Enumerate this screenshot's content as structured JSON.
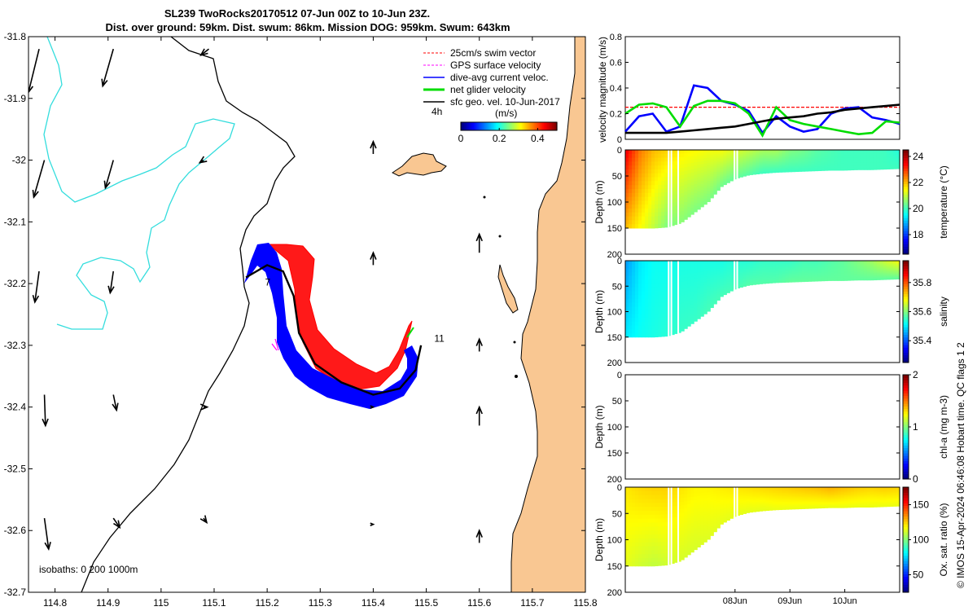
{
  "title": {
    "line1": "SL239 TwoRocks20170512 07-Jun 00Z to 10-Jun 23Z.",
    "line2": "Dist. over ground: 59km. Dist. swum: 86km. Mission DOG: 959km. Swum: 643km"
  },
  "colors": {
    "land": "#f9c792",
    "swim": "#ff0000",
    "gps": "#ff00ff",
    "current": "#0000ff",
    "net": "#00dd00",
    "geo": "#000000",
    "isobath": "#33dddd"
  },
  "chart_data": [
    {
      "type": "map",
      "name": "track-map",
      "xlabel": "",
      "ylabel": "",
      "xlim": [
        114.75,
        115.8
      ],
      "ylim": [
        -32.7,
        -31.8
      ],
      "xticks": [
        114.8,
        114.9,
        115,
        115.1,
        115.2,
        115.3,
        115.4,
        115.5,
        115.6,
        115.7,
        115.8
      ],
      "xtick_labels": [
        "114.8",
        "114.9",
        "115",
        "115.1",
        "115.2",
        "115.3",
        "115.4",
        "115.5",
        "115.6",
        "115.7",
        "115.8"
      ],
      "yticks": [
        -31.8,
        -31.9,
        -32,
        -32.1,
        -32.2,
        -32.3,
        -32.4,
        -32.5,
        -32.6,
        -32.7
      ],
      "ytick_labels": [
        "-31.8",
        "-31.9",
        "-32",
        "-32.1",
        "-32.2",
        "-32.3",
        "-32.4",
        "-32.5",
        "-32.6",
        "-32.7"
      ],
      "track": [
        [
          115.16,
          -32.19
        ],
        [
          115.2,
          -32.17
        ],
        [
          115.23,
          -32.18
        ],
        [
          115.25,
          -32.22
        ],
        [
          115.26,
          -32.28
        ],
        [
          115.29,
          -32.33
        ],
        [
          115.34,
          -32.36
        ],
        [
          115.4,
          -32.38
        ],
        [
          115.45,
          -32.37
        ],
        [
          115.48,
          -32.34
        ],
        [
          115.49,
          -32.3
        ]
      ],
      "day_labels": [
        {
          "text": "7",
          "lon": 115.196,
          "lat": -32.203
        },
        {
          "text": "11",
          "lon": 115.515,
          "lat": -32.294
        }
      ],
      "geo_vectors": [
        [
          114.77,
          -31.82,
          -0.02,
          -0.07
        ],
        [
          114.91,
          -31.82,
          -0.02,
          -0.06
        ],
        [
          115.09,
          -31.82,
          -0.015,
          -0.01
        ],
        [
          114.78,
          -32.0,
          -0.02,
          -0.06
        ],
        [
          114.91,
          -32.0,
          -0.015,
          -0.045
        ],
        [
          115.08,
          -32.0,
          -0.007,
          -0.004
        ],
        [
          114.77,
          -32.18,
          -0.008,
          -0.05
        ],
        [
          114.91,
          -32.18,
          -0.006,
          -0.035
        ],
        [
          114.78,
          -32.38,
          0.002,
          -0.05
        ],
        [
          114.91,
          -32.38,
          0.006,
          -0.025
        ],
        [
          115.08,
          -32.4,
          0.007,
          0.0
        ],
        [
          114.78,
          -32.58,
          0.008,
          -0.05
        ],
        [
          114.91,
          -32.58,
          0.012,
          -0.015
        ],
        [
          115.08,
          -32.58,
          0.006,
          -0.007
        ],
        [
          115.4,
          -31.99,
          0.0,
          0.02
        ],
        [
          115.4,
          -32.17,
          0.0,
          0.02
        ],
        [
          115.4,
          -32.4,
          0.0,
          0.0
        ],
        [
          115.4,
          -32.59,
          0.0,
          0.0
        ],
        [
          115.6,
          -32.15,
          0.0,
          0.03
        ],
        [
          115.6,
          -32.31,
          0.0,
          0.02
        ],
        [
          115.6,
          -32.43,
          0.0,
          0.03
        ],
        [
          115.6,
          -32.62,
          0.0,
          0.02
        ]
      ],
      "legend": [
        {
          "label": "25cm/s swim vector",
          "color": "#ff0000"
        },
        {
          "label": "GPS surface velocity",
          "color": "#ff00ff"
        },
        {
          "label": "dive-avg current veloc.",
          "color": "#0000ff"
        },
        {
          "label": "net glider velocity",
          "color": "#00dd00"
        },
        {
          "label": "sfc geo. vel. 10-Jun-2017",
          "color": "#000000"
        }
      ],
      "scale_label": "4h",
      "colorbar": {
        "label": "(m/s)",
        "ticks": [
          0,
          0.2,
          0.4
        ],
        "tick_labels": [
          "0",
          "0.2",
          "0.4"
        ],
        "range": [
          0,
          0.5
        ]
      },
      "isobaths_label": "isobaths: 0   200  1000m"
    },
    {
      "type": "line",
      "name": "velocity-magnitude",
      "ylabel": "velocity magnitude (m/s)",
      "ylim": [
        0,
        0.8
      ],
      "yticks": [
        0,
        0.2,
        0.4,
        0.6,
        0.8
      ],
      "ytick_labels": [
        "0",
        "0.2",
        "0.4",
        "0.6",
        "0.8"
      ],
      "xlim": [
        0,
        100
      ],
      "series": [
        {
          "name": "swim",
          "color": "#ff0000",
          "values": [
            0.25,
            0.25,
            0.25,
            0.25,
            0.25,
            0.25,
            0.25,
            0.25,
            0.25,
            0.25,
            0.25,
            0.25,
            0.25,
            0.25,
            0.25,
            0.25,
            0.25,
            0.25,
            0.25,
            0.25,
            0.25
          ]
        },
        {
          "name": "dive-avg current",
          "color": "#0000ff",
          "values": [
            0.06,
            0.18,
            0.2,
            0.06,
            0.1,
            0.42,
            0.4,
            0.3,
            0.27,
            0.22,
            0.05,
            0.18,
            0.1,
            0.06,
            0.08,
            0.2,
            0.24,
            0.25,
            0.17,
            0.15,
            0.12
          ]
        },
        {
          "name": "net glider",
          "color": "#00dd00",
          "values": [
            0.2,
            0.27,
            0.28,
            0.25,
            0.1,
            0.26,
            0.3,
            0.3,
            0.28,
            0.2,
            0.03,
            0.25,
            0.15,
            0.12,
            0.1,
            0.08,
            0.06,
            0.04,
            0.05,
            0.14,
            0.13
          ]
        },
        {
          "name": "sfc geo",
          "color": "#000000",
          "values": [
            0.05,
            0.05,
            0.05,
            0.05,
            0.06,
            0.07,
            0.08,
            0.09,
            0.1,
            0.12,
            0.14,
            0.16,
            0.17,
            0.18,
            0.2,
            0.21,
            0.23,
            0.24,
            0.25,
            0.26,
            0.27
          ]
        }
      ]
    },
    {
      "type": "heatmap",
      "name": "temperature-section",
      "ylabel": "Depth (m)",
      "ylim": [
        200,
        0
      ],
      "yticks": [
        0,
        50,
        100,
        150,
        200
      ],
      "ytick_labels": [
        "0",
        "50",
        "100",
        "150",
        "200"
      ],
      "colorbar_label": "temperature (°C)",
      "clim": [
        16.5,
        24.5
      ],
      "cticks": [
        18,
        20,
        22,
        24
      ],
      "ctick_labels": [
        "18",
        "20",
        "22",
        "24"
      ],
      "bottom_depth": [
        150,
        150,
        150,
        148,
        140,
        120,
        100,
        70,
        55,
        48,
        45,
        43,
        42,
        41,
        40,
        39,
        39,
        38,
        38,
        37,
        36
      ],
      "surface_values": [
        23.5,
        22.5,
        22,
        21.8,
        21.6,
        21.5,
        21.4,
        21.4,
        21.2,
        21.0,
        20.8,
        20.8,
        20.5,
        20.4,
        20.2,
        20.1,
        20.0,
        20.0,
        20.0,
        20.0,
        19.8
      ],
      "deep_values": [
        22,
        21.5,
        21,
        20.5,
        20.6,
        20.5,
        20.5,
        20.4,
        20.3,
        20.2,
        20.0,
        20,
        20,
        20,
        20,
        20,
        20,
        20,
        20,
        20,
        20
      ]
    },
    {
      "type": "heatmap",
      "name": "salinity-section",
      "ylabel": "Depth (m)",
      "ylim": [
        200,
        0
      ],
      "yticks": [
        0,
        50,
        100,
        150,
        200
      ],
      "ytick_labels": [
        "0",
        "50",
        "100",
        "150",
        "200"
      ],
      "colorbar_label": "salinity",
      "clim": [
        35.25,
        35.95
      ],
      "cticks": [
        35.4,
        35.6,
        35.8
      ],
      "ctick_labels": [
        "35.4",
        "35.6",
        "35.8"
      ],
      "bottom_depth": [
        150,
        150,
        150,
        148,
        140,
        120,
        100,
        70,
        55,
        48,
        45,
        43,
        42,
        41,
        40,
        39,
        39,
        38,
        38,
        37,
        36
      ],
      "surface_values": [
        35.45,
        35.5,
        35.52,
        35.52,
        35.53,
        35.53,
        35.53,
        35.53,
        35.54,
        35.54,
        35.55,
        35.55,
        35.55,
        35.56,
        35.56,
        35.57,
        35.58,
        35.6,
        35.62,
        35.65,
        35.68
      ],
      "deep_values": [
        35.5,
        35.52,
        35.53,
        35.54,
        35.55,
        35.55,
        35.56,
        35.56,
        35.56,
        35.57,
        35.57,
        35.57,
        35.58,
        35.58,
        35.58,
        35.58,
        35.58,
        35.58,
        35.58,
        35.58,
        35.58
      ]
    },
    {
      "type": "heatmap",
      "name": "chla-section",
      "ylabel": "Depth (m)",
      "ylim": [
        200,
        0
      ],
      "yticks": [
        0,
        50,
        100,
        150,
        200
      ],
      "ytick_labels": [
        "0",
        "50",
        "100",
        "150",
        "200"
      ],
      "colorbar_label": "chl-a (mg m-3)",
      "clim": [
        0,
        2
      ],
      "cticks": [
        0,
        1,
        2
      ],
      "ctick_labels": [
        "0",
        "1",
        "2"
      ],
      "bottom_depth": [],
      "surface_values": [],
      "deep_values": []
    },
    {
      "type": "heatmap",
      "name": "oxygen-section",
      "ylabel": "Depth (m)",
      "ylim": [
        200,
        0
      ],
      "yticks": [
        0,
        50,
        100,
        150,
        200
      ],
      "ytick_labels": [
        "0",
        "50",
        "100",
        "150",
        "200"
      ],
      "colorbar_label": "Ox. sat. ratio (%)",
      "clim": [
        25,
        175
      ],
      "cticks": [
        50,
        100,
        150
      ],
      "ctick_labels": [
        "50",
        "100",
        "150"
      ],
      "bottom_depth": [
        150,
        150,
        150,
        148,
        140,
        120,
        100,
        70,
        55,
        48,
        45,
        43,
        42,
        41,
        40,
        39,
        39,
        38,
        38,
        37,
        36
      ],
      "surface_values": [
        122,
        124,
        125,
        125,
        122,
        120,
        120,
        121,
        122,
        123,
        124,
        125,
        126,
        127,
        128,
        130,
        128,
        126,
        125,
        126,
        125
      ],
      "deep_values": [
        115,
        112,
        110,
        112,
        113,
        113,
        114,
        115,
        115,
        115,
        115,
        116,
        116,
        116,
        116,
        116,
        116,
        116,
        116,
        116,
        116
      ],
      "xticks": [
        0.4,
        0.6,
        0.8
      ],
      "xtick_labels": [
        "08Jun",
        "09Jun",
        "10Jun"
      ]
    }
  ],
  "credit": "© IMOS 15-Apr-2024 06:46:08 Hobart time. QC flags 1  2"
}
